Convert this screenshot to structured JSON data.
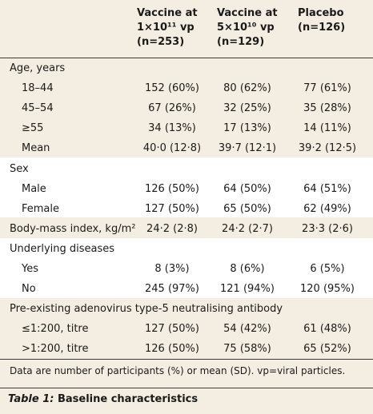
{
  "headers": {
    "col1": [
      "Vaccine at",
      "1×10¹¹ vp",
      "(n=253)"
    ],
    "col2": [
      "Vaccine at",
      "5×10¹⁰ vp",
      "(n=129)"
    ],
    "col3": [
      "Placebo",
      "(n=126)"
    ]
  },
  "rows": [
    {
      "label": "Age, years",
      "indent": false,
      "values": [
        "",
        "",
        ""
      ]
    },
    {
      "label": "18–44",
      "indent": true,
      "values": [
        "152 (60%)",
        "80 (62%)",
        "77 (61%)"
      ]
    },
    {
      "label": "45–54",
      "indent": true,
      "values": [
        "67 (26%)",
        "32 (25%)",
        "35 (28%)"
      ]
    },
    {
      "label": "≥55",
      "indent": true,
      "values": [
        "34 (13%)",
        "17 (13%)",
        "14 (11%)"
      ]
    },
    {
      "label": "Mean",
      "indent": true,
      "values": [
        "40·0 (12·8)",
        "39·7 (12·1)",
        "39·2 (12·5)"
      ]
    },
    {
      "label": "Sex",
      "indent": false,
      "values": [
        "",
        "",
        ""
      ]
    },
    {
      "label": "Male",
      "indent": true,
      "values": [
        "126 (50%)",
        "64 (50%)",
        "64 (51%)"
      ]
    },
    {
      "label": "Female",
      "indent": true,
      "values": [
        "127 (50%)",
        "65 (50%)",
        "62 (49%)"
      ]
    },
    {
      "label": "Body-mass index, kg/m²",
      "indent": false,
      "values": [
        "24·2 (2·8)",
        "24·2 (2·7)",
        "23·3 (2·6)"
      ]
    },
    {
      "label": "Underlying diseases",
      "indent": false,
      "values": [
        "",
        "",
        ""
      ]
    },
    {
      "label": "Yes",
      "indent": true,
      "values": [
        "8 (3%)",
        "8 (6%)",
        "6 (5%)"
      ]
    },
    {
      "label": "No",
      "indent": true,
      "values": [
        "245 (97%)",
        "121 (94%)",
        "120 (95%)"
      ]
    },
    {
      "label": "Pre-existing adenovirus type-5 neutralising antibody",
      "indent": false,
      "values": [
        "",
        "",
        ""
      ]
    },
    {
      "label": "≤1:200, titre",
      "indent": true,
      "values": [
        "127 (50%)",
        "54 (42%)",
        "61 (48%)"
      ]
    },
    {
      "label": ">1:200, titre",
      "indent": true,
      "values": [
        "126 (50%)",
        "75 (58%)",
        "65 (52%)"
      ]
    }
  ],
  "footnote": "Data are number of participants (%) or mean (SD). vp=viral particles.",
  "caption": {
    "label": "Table 1:",
    "text": " Baseline characteristics"
  }
}
